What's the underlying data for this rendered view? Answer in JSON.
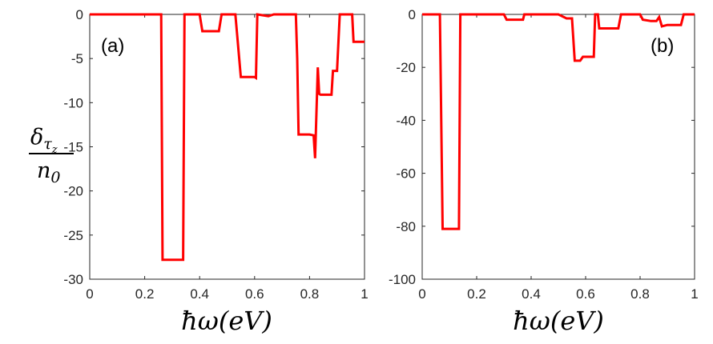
{
  "ylabel": {
    "numerator": "δ",
    "numerator_sub": "τ",
    "numerator_subsub": "z",
    "denominator": "n",
    "denominator_sub": "0"
  },
  "chart_data": [
    {
      "type": "line",
      "panel_label": "(a)",
      "xlabel": "ħω(eV)",
      "xlim": [
        0,
        1
      ],
      "ylim": [
        -30,
        0
      ],
      "xticks": [
        "0",
        "0.2",
        "0.4",
        "0.6",
        "0.8",
        "1"
      ],
      "yticks": [
        "0",
        "-5",
        "-10",
        "-15",
        "-20",
        "-25",
        "-30"
      ],
      "grid": false,
      "color": "#ff0000",
      "series": [
        {
          "x": [
            0,
            0.26,
            0.265,
            0.34,
            0.345,
            0.4,
            0.41,
            0.47,
            0.48,
            0.5,
            0.53,
            0.55,
            0.6,
            0.605,
            0.61,
            0.65,
            0.67,
            0.75,
            0.755,
            0.76,
            0.8,
            0.815,
            0.82,
            0.83,
            0.835,
            0.84,
            0.88,
            0.885,
            0.9,
            0.91,
            0.93,
            0.955,
            0.96,
            1
          ],
          "y": [
            0,
            0,
            -27.8,
            -27.8,
            0,
            0,
            -1.9,
            -1.9,
            0,
            0,
            0,
            -7.1,
            -7.1,
            -7.2,
            0,
            -0.2,
            0,
            0,
            -5,
            -13.6,
            -13.6,
            -13.7,
            -16.3,
            -6,
            -9,
            -9.1,
            -9.1,
            -6.4,
            -6.4,
            0,
            0,
            0,
            -3.1,
            -3.1
          ]
        }
      ]
    },
    {
      "type": "line",
      "panel_label": "(b)",
      "xlabel": "ħω(eV)",
      "xlim": [
        0,
        1
      ],
      "ylim": [
        -100,
        0
      ],
      "xticks": [
        "0",
        "0.2",
        "0.4",
        "0.6",
        "0.8",
        "1"
      ],
      "yticks": [
        "0",
        "-20",
        "-40",
        "-60",
        "-80",
        "-100"
      ],
      "grid": false,
      "color": "#ff0000",
      "series": [
        {
          "x": [
            0,
            0.065,
            0.075,
            0.135,
            0.14,
            0.3,
            0.31,
            0.37,
            0.375,
            0.5,
            0.53,
            0.55,
            0.56,
            0.58,
            0.59,
            0.63,
            0.635,
            0.645,
            0.65,
            0.66,
            0.72,
            0.73,
            0.78,
            0.8,
            0.81,
            0.84,
            0.86,
            0.87,
            0.88,
            0.9,
            0.92,
            0.95,
            0.96,
            1
          ],
          "y": [
            0,
            0,
            -81,
            -81,
            0,
            0,
            -2,
            -2,
            0,
            0,
            -1.5,
            -1.5,
            -17.5,
            -17.5,
            -16,
            -16,
            0,
            0,
            -5.3,
            -5.3,
            -5.3,
            0,
            0,
            0,
            -2,
            -2.5,
            -2.5,
            -1,
            -4.5,
            -4,
            -4,
            -4,
            0,
            0
          ]
        }
      ]
    }
  ]
}
